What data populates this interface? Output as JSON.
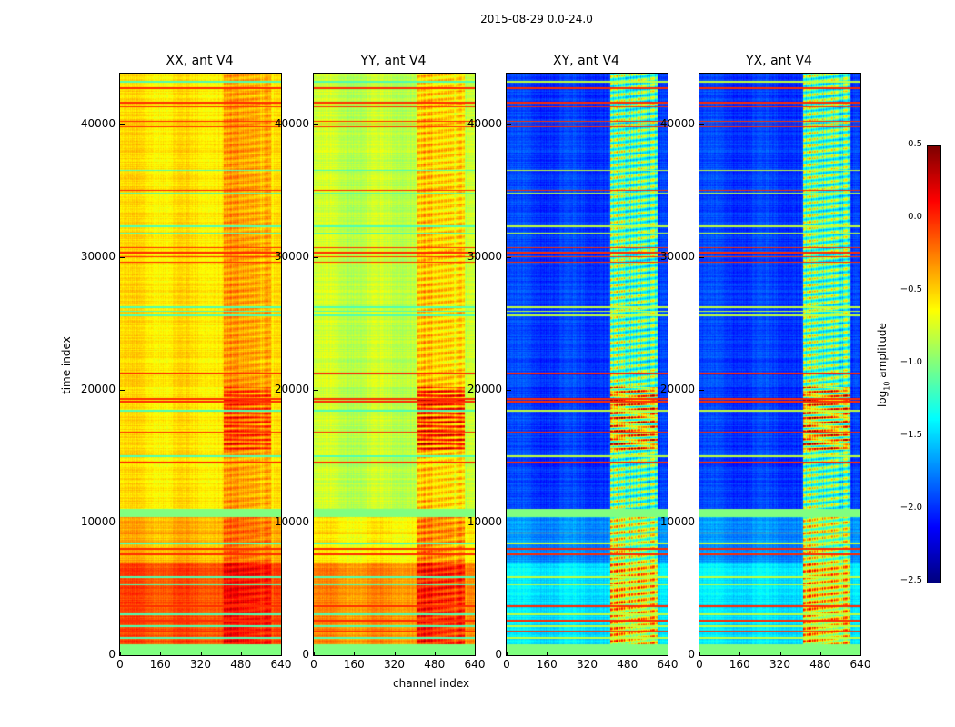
{
  "chart_data": {
    "type": "heatmap",
    "title": "2015-08-29 0.0-24.0",
    "xlabel": "channel index",
    "ylabel": "time index",
    "xlim": [
      0,
      640
    ],
    "ylim": [
      0,
      43800
    ],
    "xticks": [
      0,
      160,
      320,
      480,
      640
    ],
    "yticks": [
      0,
      10000,
      20000,
      30000,
      40000
    ],
    "colorbar": {
      "label": "log10 amplitude",
      "label_main": "log",
      "label_sub": "10",
      "label_rest": " amplitude",
      "colormap": "jet",
      "range": [
        -2.5,
        0.5
      ],
      "ticks": [
        "0.5",
        "0.0",
        "−0.5",
        "−1.0",
        "−1.5",
        "−2.0",
        "−2.5"
      ],
      "tick_values": [
        0.5,
        0.0,
        -0.5,
        -1.0,
        -1.5,
        -2.0,
        -2.5
      ]
    },
    "panels": [
      {
        "title": "XX, ant V4",
        "upper_level": -0.55,
        "lower_level": -0.1,
        "mid_level": -0.4,
        "rfi_boost": 0.25,
        "burst_boost": 0.45
      },
      {
        "title": "YY, ant V4",
        "upper_level": -0.8,
        "lower_level": -0.3,
        "mid_level": -0.6,
        "rfi_boost": 0.4,
        "burst_boost": 0.7
      },
      {
        "title": "XY, ant V4",
        "upper_level": -1.95,
        "lower_level": -1.45,
        "mid_level": -1.7,
        "rfi_boost": 1.15,
        "burst_boost": 1.0
      },
      {
        "title": "YX, ant V4",
        "upper_level": -1.95,
        "lower_level": -1.45,
        "mid_level": -1.7,
        "rfi_boost": 1.15,
        "burst_boost": 1.0
      }
    ],
    "rfi_channels": [
      410,
      600
    ],
    "burst_time_range": [
      15500,
      20200
    ],
    "low_band_time_range": [
      800,
      7000
    ],
    "mid_band_time_range": [
      7000,
      10400
    ],
    "flag_band_time_ranges": [
      [
        0,
        800
      ],
      [
        10400,
        11000
      ]
    ],
    "flag_level": -1.0,
    "red_flag_lines": [
      1800,
      2600,
      3700,
      7600,
      8000,
      9200,
      14500,
      16800,
      19100,
      19300,
      21200,
      29600,
      30000,
      30300,
      30700,
      35000,
      39800,
      40000,
      40200,
      41300,
      41600,
      42700
    ],
    "green_flag_lines": [
      1300,
      2200,
      3100,
      5300,
      5900,
      8400,
      15000,
      18400,
      25600,
      25900,
      26200,
      31800,
      32300,
      34800,
      36500,
      43200
    ]
  }
}
